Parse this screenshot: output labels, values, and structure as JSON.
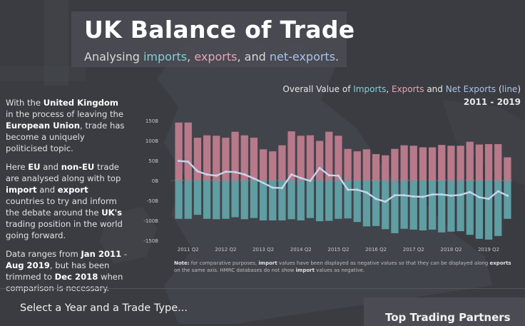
{
  "header": {
    "title": "UK Balance of Trade",
    "subtitle_parts": [
      "Analysing ",
      "imports",
      ", ",
      "exports",
      ", and ",
      "net-exports",
      "."
    ]
  },
  "intro": [
    [
      "With the ",
      "United Kingdom",
      " in the process of leaving the ",
      "European Union",
      ", trade has become a uniquely politicised topic."
    ],
    [
      "Here ",
      "EU",
      " and ",
      "non-EU",
      " trade are analysed along with top ",
      "import",
      " and ",
      "export",
      " countries to try and inform the debate around the ",
      "UK's",
      " trading position in the world going forward."
    ],
    [
      "Data ranges from ",
      "Jan 2011",
      " - ",
      "Aug 2019",
      ", but has been trimmed to ",
      "Dec 2018",
      " when comparison is necessary."
    ]
  ],
  "chart_title": {
    "parts": [
      "Overall Value of ",
      "Imports",
      ", ",
      "Exports",
      " and ",
      "Net Exports",
      " (",
      "line",
      ")"
    ],
    "years": "2011 - 2019"
  },
  "note": {
    "parts": [
      "Note:",
      " for comparative purposes, ",
      "import",
      " values have been displayed as negative values so that they can be displayed along ",
      "exports",
      " on the same axis. HMRC databases do not show ",
      "import",
      " values as negative."
    ]
  },
  "footer": {
    "select_prompt": "Select a Year and a Trade Type...",
    "partners_heading": "Top Trading Partners"
  },
  "colors": {
    "exports": "#b8798a",
    "imports": "#5f9ea3",
    "net_line": "#c5d6ec",
    "background": "#3b3c42"
  },
  "chart_data": {
    "type": "bar",
    "x_tick_labels": [
      "2011 Q2",
      "2012 Q2",
      "2013 Q2",
      "2014 Q2",
      "2015 Q2",
      "2016 Q2",
      "2017 Q2",
      "2018 Q2",
      "2019 Q2"
    ],
    "ytick_labels": [
      "150B",
      "100B",
      "50B",
      "0B",
      "-50B",
      "-100B",
      "-150B"
    ],
    "ylim": [
      -170,
      160
    ],
    "unit": "B",
    "series": [
      {
        "name": "Exports",
        "type": "bar",
        "values": [
          145,
          145,
          107,
          113,
          112,
          107,
          122,
          113,
          107,
          78,
          73,
          88,
          123,
          112,
          113,
          99,
          122,
          112,
          79,
          73,
          78,
          66,
          63,
          79,
          88,
          87,
          83,
          83,
          89,
          87,
          87,
          97,
          90,
          91,
          91,
          58
        ]
      },
      {
        "name": "Imports",
        "type": "bar",
        "values": [
          -96,
          -96,
          -86,
          -96,
          -97,
          -96,
          -92,
          -97,
          -94,
          -100,
          -100,
          -100,
          -97,
          -100,
          -94,
          -102,
          -101,
          -96,
          -95,
          -104,
          -115,
          -114,
          -122,
          -132,
          -121,
          -123,
          -125,
          -123,
          -130,
          -128,
          -127,
          -136,
          -146,
          -148,
          -139,
          -96
        ]
      },
      {
        "name": "Net Exports",
        "type": "line",
        "values": [
          49,
          47,
          23,
          15,
          12,
          22,
          21,
          15,
          5,
          -6,
          -18,
          -19,
          15,
          6,
          -1,
          31,
          13,
          12,
          -23,
          -23,
          -30,
          -46,
          -53,
          -37,
          -37,
          -40,
          -41,
          -35,
          -35,
          -38,
          -36,
          -29,
          -42,
          -46,
          -27,
          -38
        ]
      }
    ]
  }
}
